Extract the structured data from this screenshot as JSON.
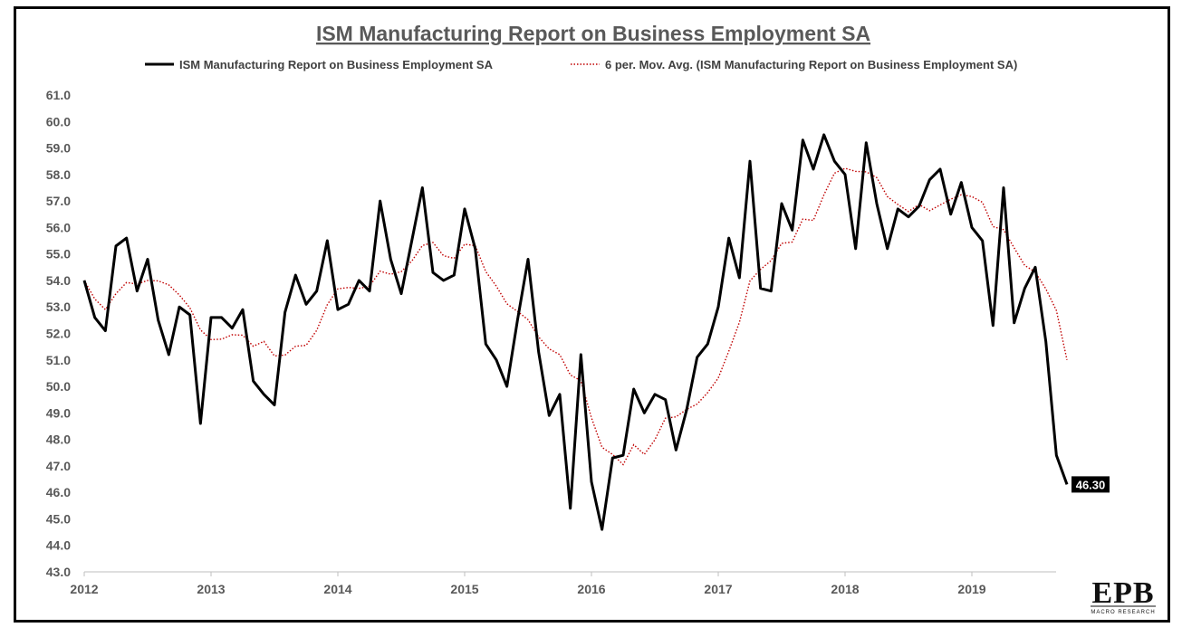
{
  "chart_data": {
    "type": "line",
    "title": "ISM Manufacturing Report on Business Employment SA",
    "xlabel": "",
    "ylabel": "",
    "ylim": [
      43.0,
      61.0
    ],
    "ytick_step": 1.0,
    "x_tick_labels": [
      "2012",
      "2013",
      "2014",
      "2015",
      "2016",
      "2017",
      "2018",
      "2019"
    ],
    "x_start_year": 2012,
    "legend_position": "top-center",
    "grid": false,
    "series": [
      {
        "name": "ISM Manufacturing Report on Business Employment SA",
        "style": "solid",
        "color": "#000000",
        "start": "2012-01",
        "values": [
          54.0,
          52.6,
          52.1,
          55.3,
          55.6,
          53.6,
          54.8,
          52.5,
          51.2,
          53.0,
          52.7,
          48.6,
          52.6,
          52.6,
          52.2,
          52.9,
          50.2,
          49.7,
          49.3,
          52.8,
          54.2,
          53.1,
          53.6,
          55.5,
          52.9,
          53.1,
          54.0,
          53.6,
          57.0,
          54.8,
          53.5,
          55.5,
          57.5,
          54.3,
          54.0,
          54.2,
          56.7,
          55.2,
          51.6,
          51.0,
          50.0,
          52.5,
          54.8,
          51.3,
          48.9,
          49.7,
          45.4,
          51.2,
          46.4,
          44.6,
          47.3,
          47.4,
          49.9,
          49.0,
          49.7,
          49.5,
          47.6,
          49.1,
          51.1,
          51.6,
          53.0,
          55.6,
          54.1,
          58.5,
          53.7,
          53.6,
          56.9,
          55.9,
          59.3,
          58.2,
          59.5,
          58.5,
          58.0,
          55.2,
          59.2,
          56.9,
          55.2,
          56.7,
          56.4,
          56.8,
          57.8,
          58.2,
          56.5,
          57.7,
          56.0,
          55.5,
          52.3,
          57.5,
          52.4,
          53.7,
          54.5,
          51.7,
          47.4,
          46.3
        ]
      },
      {
        "name": "6 per. Mov. Avg. (ISM Manufacturing Report on Business Employment SA)",
        "style": "dotted",
        "color": "#c00000",
        "computed_from": "ISM Manufacturing Report on Business Employment SA",
        "window": 6
      }
    ],
    "end_label": "46.30"
  }
}
